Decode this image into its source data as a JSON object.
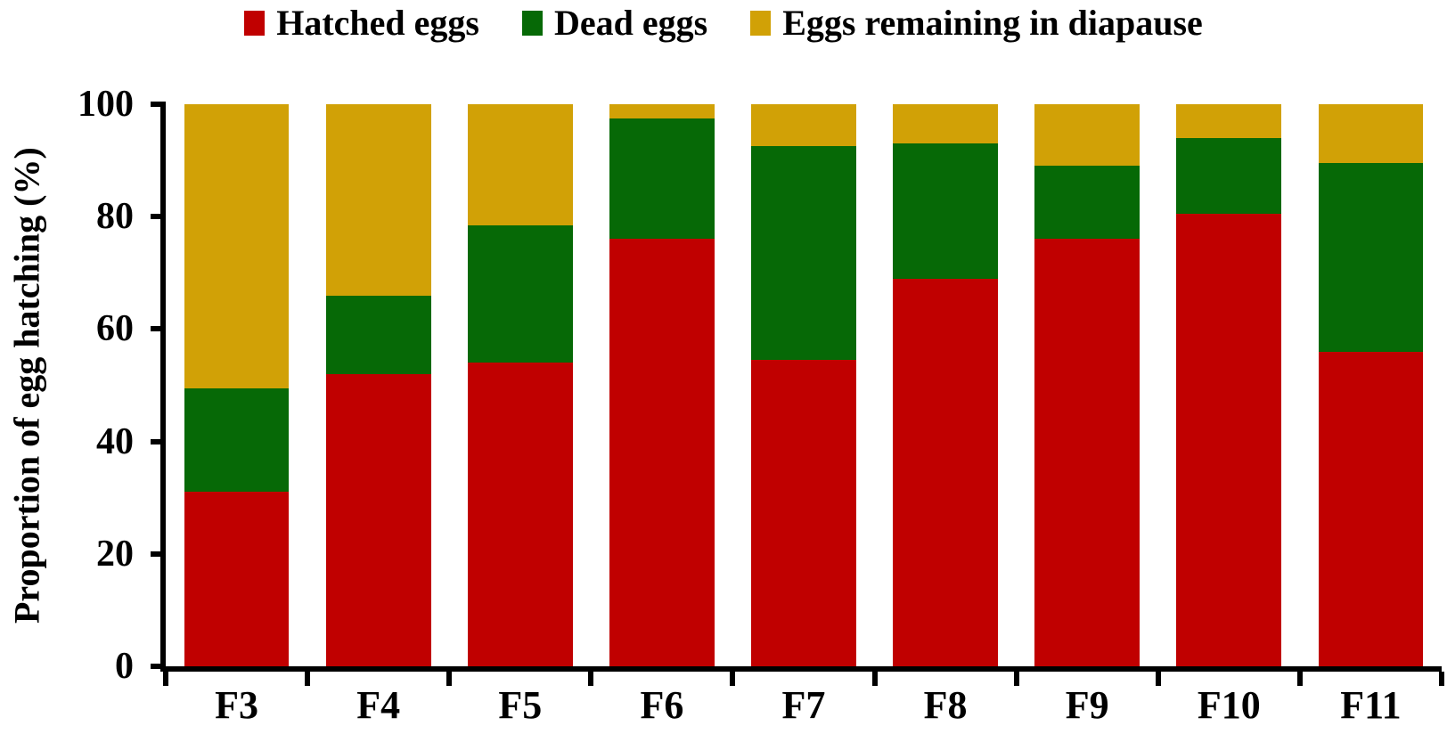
{
  "chart_data": {
    "type": "bar",
    "stacked": true,
    "categories": [
      "F3",
      "F4",
      "F5",
      "F6",
      "F7",
      "F8",
      "F9",
      "F10",
      "F11"
    ],
    "series": [
      {
        "name": "Hatched eggs",
        "color": "#C00000",
        "values": [
          31,
          52,
          54,
          76,
          54.5,
          69,
          76,
          80.5,
          56
        ]
      },
      {
        "name": "Dead eggs",
        "color": "#066906",
        "values": [
          18.5,
          14,
          24.5,
          21.5,
          38,
          24,
          13,
          13.5,
          33.5
        ]
      },
      {
        "name": "Eggs remaining in diapause",
        "color": "#D1A106",
        "values": [
          50.5,
          34,
          21.5,
          2.5,
          7.5,
          7,
          11,
          6,
          10.5
        ]
      }
    ],
    "title": "",
    "xlabel": "",
    "ylabel": "Proportion of egg hatching (%)",
    "ylim": [
      0,
      100
    ],
    "y_ticks": [
      0,
      20,
      40,
      60,
      80,
      100
    ],
    "x_boundary_ticks": 10,
    "legend_position": "top",
    "grid": false,
    "axis_color": "#000000",
    "text_color": "#000000",
    "background_color": "#ffffff"
  }
}
